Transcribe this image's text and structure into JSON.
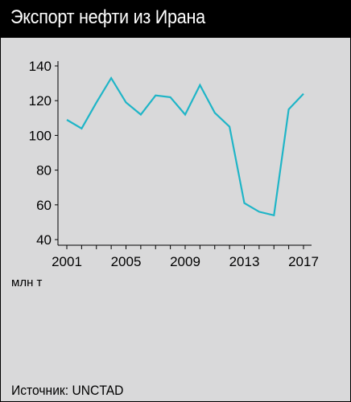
{
  "header": {
    "title": "Экспорт нефти из Ирана"
  },
  "colors": {
    "background": "#d9d9da",
    "title_bar": "#000000",
    "line": "#1fb5c7"
  },
  "unit_label": "млн т",
  "source_label": "Источник: UNCTAD",
  "chart_data": {
    "type": "line",
    "title": "Экспорт нефти из Ирана",
    "xlabel": "",
    "ylabel": "млн т",
    "xlim": [
      2001,
      2017
    ],
    "ylim": [
      40,
      140
    ],
    "xticks": [
      "2001",
      "2005",
      "2009",
      "2013",
      "2017"
    ],
    "yticks": [
      "40",
      "60",
      "80",
      "100",
      "120",
      "140"
    ],
    "grid": false,
    "series": [
      {
        "x": [
          2001,
          2002,
          2003,
          2004,
          2005,
          2006,
          2007,
          2008,
          2009,
          2010,
          2011,
          2012,
          2013,
          2014,
          2015,
          2016,
          2017
        ],
        "values": [
          109,
          104,
          119,
          133,
          119,
          112,
          123,
          122,
          112,
          129,
          113,
          105,
          61,
          56,
          54,
          115,
          124
        ]
      }
    ]
  }
}
